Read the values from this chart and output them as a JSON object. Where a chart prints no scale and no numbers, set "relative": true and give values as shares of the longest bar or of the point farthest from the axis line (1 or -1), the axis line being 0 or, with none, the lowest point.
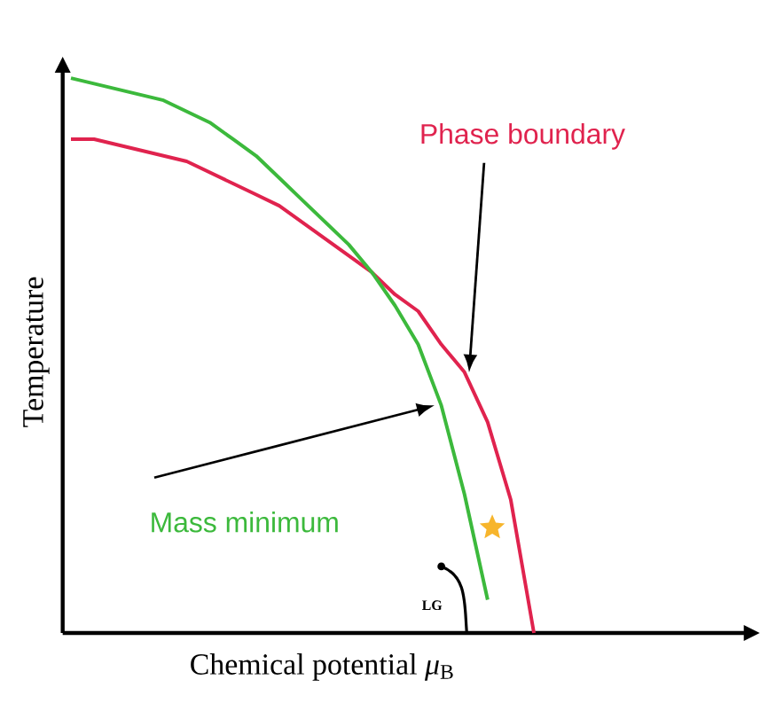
{
  "chart_data": {
    "type": "line",
    "relative": true,
    "xlabel": "Chemical potential *μ*$_{B}$",
    "ylabel": "Temperature",
    "categories": [
      null,
      null,
      null,
      null,
      null,
      null,
      null,
      null,
      null,
      null,
      null,
      null,
      null,
      null,
      null,
      null,
      null,
      null,
      null,
      null,
      null
    ],
    "series": [
      {
        "name": "Phase boundary",
        "color": "#e0234e",
        "values": [
          0.89,
          0.89,
          0.88,
          0.87,
          0.86,
          0.85,
          0.83,
          0.81,
          0.79,
          0.77,
          0.74,
          0.71,
          0.68,
          0.65,
          0.61,
          0.58,
          0.52,
          0.47,
          0.38,
          0.24,
          0.0
        ]
      },
      {
        "name": "Mass minimum",
        "color": "#3cb93c",
        "values": [
          1.0,
          0.99,
          0.98,
          0.97,
          0.96,
          0.94,
          0.92,
          0.89,
          0.86,
          0.82,
          0.78,
          0.74,
          0.7,
          0.65,
          0.59,
          0.52,
          0.41,
          0.25,
          0.06,
          null,
          null
        ]
      }
    ],
    "annotations": [
      "LG"
    ]
  }
}
